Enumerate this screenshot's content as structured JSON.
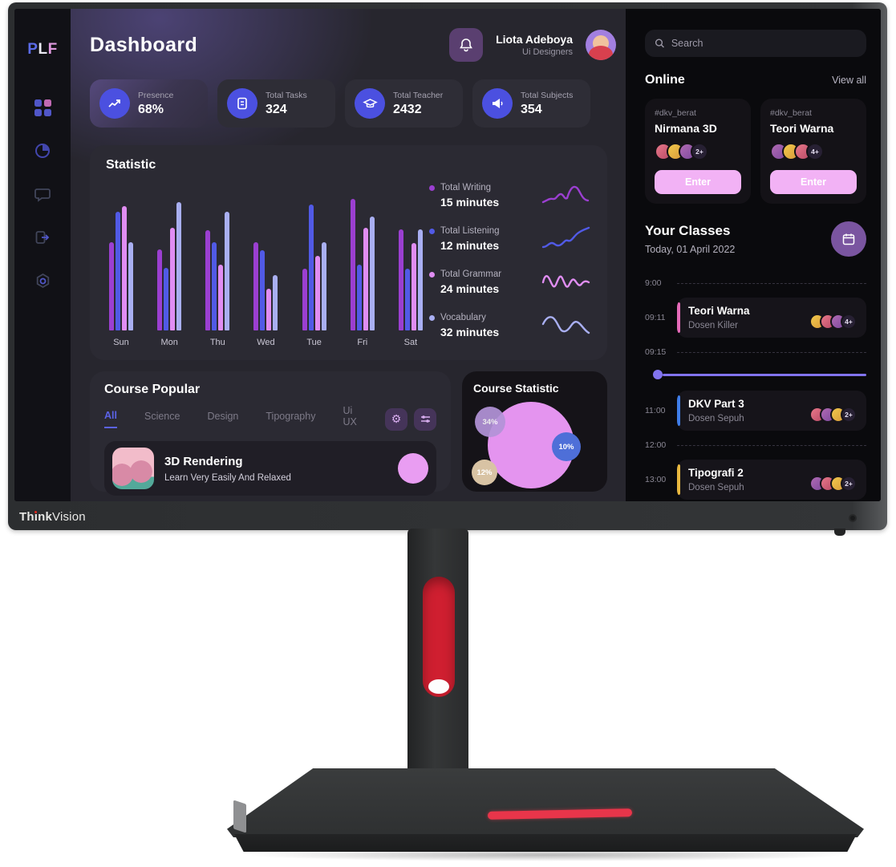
{
  "monitor": {
    "brand_bold": "Think",
    "brand_light": "Vision"
  },
  "sidebar": {
    "logo_p": "P",
    "logo_l": "L",
    "logo_f": "F",
    "icons": [
      "dashboard-grid-icon",
      "pie-chart-icon",
      "chat-icon",
      "logout-icon",
      "settings-icon"
    ]
  },
  "header": {
    "title": "Dashboard",
    "user": {
      "name": "Liota Adeboya",
      "role": "Ui Designers"
    }
  },
  "stats": [
    {
      "label": "Presence",
      "value": "68%",
      "icon": "trend-up-icon"
    },
    {
      "label": "Total Tasks",
      "value": "324",
      "icon": "document-icon"
    },
    {
      "label": "Total Teacher",
      "value": "2432",
      "icon": "graduation-cap-icon"
    },
    {
      "label": "Total Subjects",
      "value": "354",
      "icon": "megaphone-icon"
    }
  ],
  "chart_data": {
    "type": "bar",
    "title": "Statistic",
    "categories": [
      "Sun",
      "Mon",
      "Thu",
      "Wed",
      "Tue",
      "Fri",
      "Sat"
    ],
    "series": [
      {
        "name": "Total Writing",
        "value_label": "15 minutes",
        "color": "#9b3fd1",
        "values": [
          62,
          57,
          70,
          62,
          43,
          92,
          71
        ]
      },
      {
        "name": "Total Listening",
        "value_label": "12 minutes",
        "color": "#515ae6",
        "values": [
          83,
          44,
          62,
          56,
          88,
          46,
          43
        ]
      },
      {
        "name": "Total Grammar",
        "value_label": "24 minutes",
        "color": "#e08df2",
        "values": [
          87,
          72,
          46,
          29,
          52,
          72,
          61
        ]
      },
      {
        "name": "Vocabulary",
        "value_label": "32 minutes",
        "color": "#a9aff2",
        "values": [
          62,
          90,
          83,
          39,
          62,
          80,
          71
        ]
      }
    ],
    "ylim": [
      0,
      100
    ],
    "grid": false,
    "legend_position": "right"
  },
  "course_popular": {
    "title": "Course Popular",
    "tabs": [
      "All",
      "Science",
      "Design",
      "Tipography",
      "Ui UX"
    ],
    "active_tab": "All",
    "action_icons": [
      "gear-icon",
      "filter-sliders-icon"
    ],
    "course": {
      "title": "3D Rendering",
      "subtitle": "Learn Very Easily And Relaxed"
    }
  },
  "course_statistic": {
    "title": "Course Statistic",
    "main_bubble_color": "#e494ef",
    "bubbles": [
      {
        "label": "34%",
        "color": "#b393d8"
      },
      {
        "label": "10%",
        "color": "#4e6fd8"
      },
      {
        "label": "12%",
        "color": "#d8c3a4"
      }
    ]
  },
  "right_panel": {
    "search_placeholder": "Search",
    "online": {
      "title": "Online",
      "view_all": "View all",
      "rooms": [
        {
          "tag": "#dkv_berat",
          "name": "Nirmana 3D",
          "badge": "2+",
          "button": "Enter"
        },
        {
          "tag": "#dkv_berat",
          "name": "Teori Warna",
          "badge": "4+",
          "button": "Enter"
        }
      ]
    },
    "classes": {
      "title": "Your Classes",
      "date": "Today, 01 April 2022",
      "timeline": [
        {
          "time": "9:00"
        },
        {
          "time": "09:11",
          "title": "Teori Warna",
          "teacher": "Dosen Killer",
          "badge": "4+",
          "accent": "#e56bb8"
        },
        {
          "time": "09:15"
        },
        {
          "time": "11:00",
          "title": "DKV Part 3",
          "teacher": "Dosen Sepuh",
          "badge": "2+",
          "accent": "#3f7de8"
        },
        {
          "time": "12:00"
        },
        {
          "time": "13:00",
          "title": "Tipografi 2",
          "teacher": "Dosen Sepuh",
          "badge": "2+",
          "accent": "#e8b83f"
        }
      ]
    }
  },
  "colors": {
    "accent_blue": "#5157e6",
    "enter_button": "#f2b2f5",
    "bell_button": "#5a3f70",
    "calendar_button": "#7a55a0"
  }
}
